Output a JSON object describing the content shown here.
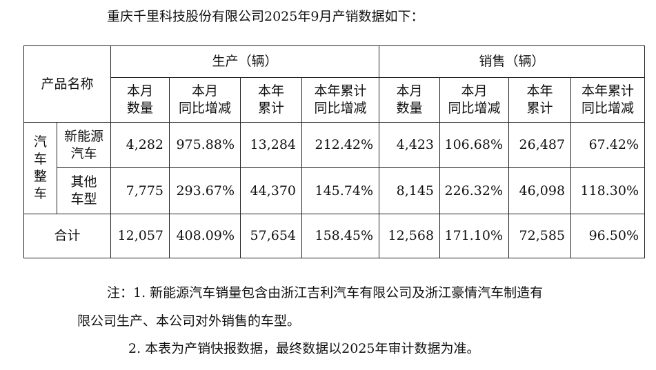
{
  "intro": "重庆千里科技股份有限公司2025年9月产销数据如下：",
  "table": {
    "corner": "产品名称",
    "groups": [
      "生产（辆）",
      "销售（辆）"
    ],
    "columns": [
      "本月\n数量",
      "本月\n同比增减",
      "本年\n累计",
      "本年累计\n同比增减",
      "本月\n数量",
      "本月\n同比增减",
      "本年\n累计",
      "本年累计\n同比增减"
    ],
    "category": "汽车\n整车",
    "rows": [
      {
        "label": "新能源\n汽车",
        "cells": [
          "4,282",
          "975.88%",
          "13,284",
          "212.42%",
          "4,423",
          "106.68%",
          "26,487",
          "67.42%"
        ]
      },
      {
        "label": "其他\n车型",
        "cells": [
          "7,775",
          "293.67%",
          "44,370",
          "145.74%",
          "8,145",
          "226.32%",
          "46,098",
          "118.30%"
        ]
      },
      {
        "label": "合计",
        "cells": [
          "12,057",
          "408.09%",
          "57,654",
          "158.45%",
          "12,568",
          "171.10%",
          "72,585",
          "96.50%"
        ]
      }
    ]
  },
  "notes": [
    [
      "注：1. 新能源汽车销量包含由浙江吉利汽车有限公司及浙江豪情汽车制造有",
      "限公司生产、本公司对外销售的车型。"
    ],
    [
      "2. 本表为产销快报数据，最终数据以2025年审计数据为准。"
    ]
  ]
}
